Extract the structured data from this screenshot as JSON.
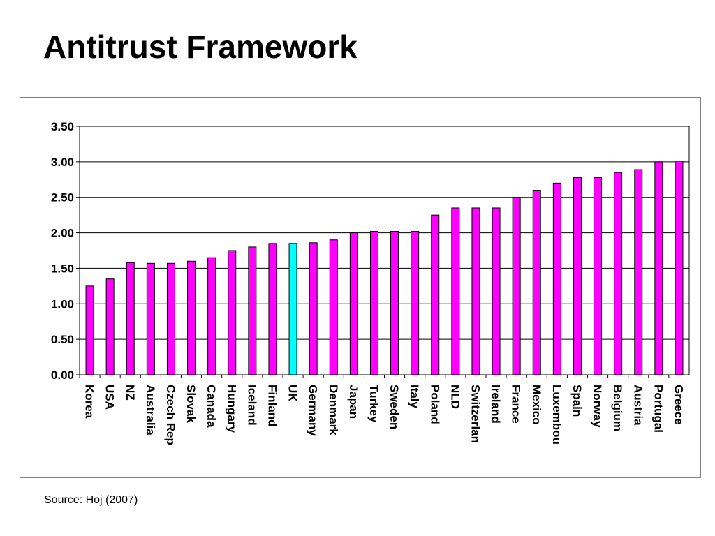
{
  "slide": {
    "title": "Antitrust Framework",
    "source": "Source: Hoj (2007)"
  },
  "colors": {
    "bar_default": "#ff00ff",
    "bar_highlight": "#00ffff",
    "bar_stroke": "#000000",
    "gridline": "#000000"
  },
  "chart_data": {
    "type": "bar",
    "title": "",
    "xlabel": "",
    "ylabel": "",
    "ylim": [
      0,
      3.5
    ],
    "yticks": [
      "0.00",
      "0.50",
      "1.00",
      "1.50",
      "2.00",
      "2.50",
      "3.00",
      "3.50"
    ],
    "ytick_values": [
      0,
      0.5,
      1.0,
      1.5,
      2.0,
      2.5,
      3.0,
      3.5
    ],
    "grid": true,
    "highlight_category": "UK",
    "categories": [
      "Korea",
      "USA",
      "NZ",
      "Australia",
      "Czech Rep",
      "Slovak",
      "Canada",
      "Hungary",
      "Iceland",
      "Finland",
      "UK",
      "Germany",
      "Denmark",
      "Japan",
      "Turkey",
      "Sweden",
      "Italy",
      "Poland",
      "NLD",
      "Switzerlan",
      "Ireland",
      "France",
      "Mexico",
      "Luxembou",
      "Spain",
      "Norway",
      "Belgium",
      "Austria",
      "Portugal",
      "Greece"
    ],
    "values": [
      1.25,
      1.35,
      1.58,
      1.57,
      1.57,
      1.6,
      1.65,
      1.75,
      1.8,
      1.85,
      1.85,
      1.86,
      1.9,
      2.0,
      2.02,
      2.02,
      2.02,
      2.25,
      2.35,
      2.35,
      2.35,
      2.5,
      2.6,
      2.7,
      2.78,
      2.78,
      2.85,
      2.89,
      3.0,
      3.01
    ]
  }
}
